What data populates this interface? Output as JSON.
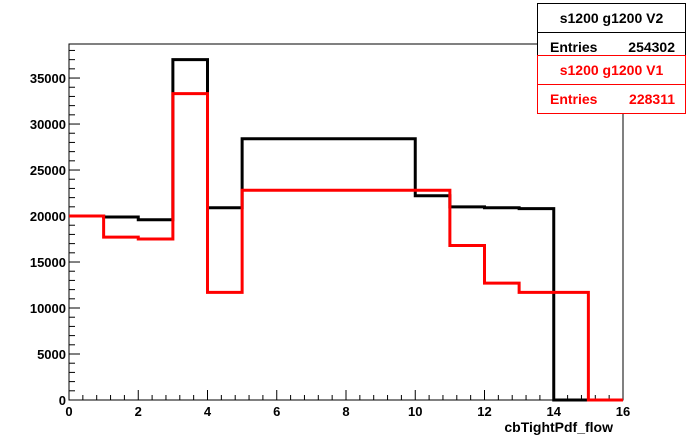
{
  "chart_data": {
    "type": "histogram",
    "xlabel": "cbTightPdf_flow",
    "ylabel": "",
    "xlim": [
      0,
      16
    ],
    "ylim": [
      0,
      38700
    ],
    "x_ticks": [
      "0",
      "2",
      "4",
      "6",
      "8",
      "10",
      "12",
      "14",
      "16"
    ],
    "y_ticks": [
      "0",
      "5000",
      "10000",
      "15000",
      "20000",
      "25000",
      "30000",
      "35000"
    ],
    "bin_edges": [
      0,
      1,
      2,
      3,
      4,
      5,
      6,
      7,
      8,
      9,
      10,
      11,
      12,
      13,
      14,
      15,
      16
    ],
    "series": [
      {
        "name": "s1200 g1200 V2",
        "entries_label": "Entries",
        "entries": "254302",
        "color": "#000000",
        "values": [
          20000,
          19900,
          19600,
          37000,
          20900,
          28400,
          28400,
          28400,
          28400,
          28400,
          22200,
          21000,
          20900,
          20800,
          0,
          0
        ]
      },
      {
        "name": "s1200 g1200 V1",
        "entries_label": "Entries",
        "entries": "228311",
        "color": "#ff0000",
        "values": [
          20000,
          17700,
          17500,
          33300,
          11700,
          22800,
          22800,
          22800,
          22800,
          22800,
          22800,
          16800,
          12700,
          11700,
          11700,
          0
        ]
      }
    ],
    "grid": false,
    "legend": "top-right"
  }
}
